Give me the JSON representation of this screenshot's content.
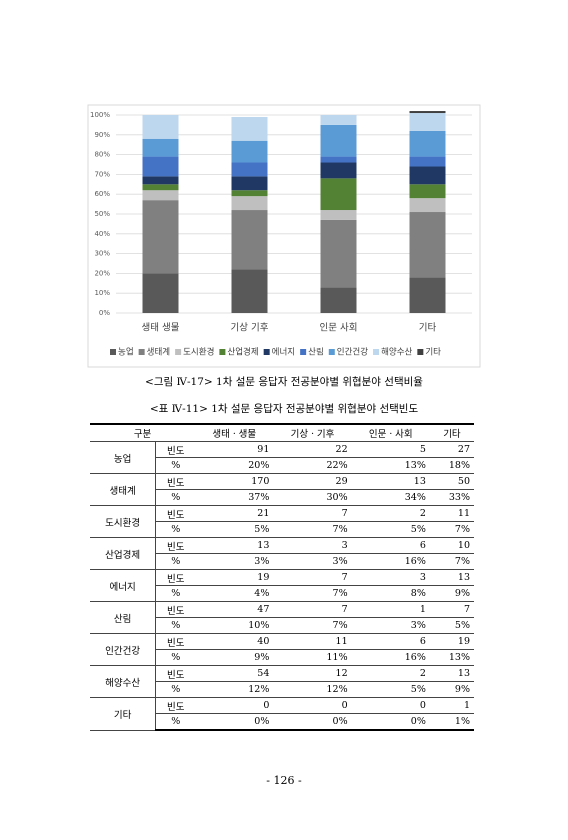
{
  "chart_data": {
    "type": "bar",
    "stacked": true,
    "categories": [
      "생태 생물",
      "기상 기후",
      "인문 사회",
      "기타"
    ],
    "series": [
      {
        "name": "농업",
        "color": "#595959",
        "values": [
          20,
          22,
          13,
          18
        ]
      },
      {
        "name": "생태계",
        "color": "#808080",
        "values": [
          37,
          30,
          34,
          33
        ]
      },
      {
        "name": "도시환경",
        "color": "#bfbfbf",
        "values": [
          5,
          7,
          5,
          7
        ]
      },
      {
        "name": "산업경제",
        "color": "#548235",
        "values": [
          3,
          3,
          16,
          7
        ]
      },
      {
        "name": "에너지",
        "color": "#1f3864",
        "values": [
          4,
          7,
          8,
          9
        ]
      },
      {
        "name": "산림",
        "color": "#4472c4",
        "values": [
          10,
          7,
          3,
          5
        ]
      },
      {
        "name": "인간건강",
        "color": "#5b9bd5",
        "values": [
          9,
          11,
          16,
          13
        ]
      },
      {
        "name": "해양수산",
        "color": "#bdd7ee",
        "values": [
          12,
          12,
          5,
          9
        ]
      },
      {
        "name": "기타",
        "color": "#404040",
        "values": [
          0,
          0,
          0,
          1
        ]
      }
    ],
    "ylim": [
      0,
      100
    ],
    "yticks": [
      {
        "value": 0,
        "label": "0%"
      },
      {
        "value": 10,
        "label": "10%"
      },
      {
        "value": 20,
        "label": "20%"
      },
      {
        "value": 30,
        "label": "30%"
      },
      {
        "value": 40,
        "label": "40%"
      },
      {
        "value": 50,
        "label": "50%"
      },
      {
        "value": 60,
        "label": "60%"
      },
      {
        "value": 70,
        "label": "70%"
      },
      {
        "value": 80,
        "label": "80%"
      },
      {
        "value": 90,
        "label": "90%"
      },
      {
        "value": 100,
        "label": "100%"
      }
    ],
    "grid": true,
    "legend": "bottom"
  },
  "figure_caption": "<그림 Ⅳ-17> 1차 설문 응답자 전공분야별 위협분야 선택비율",
  "table_caption": "<표 Ⅳ-11> 1차 설문 응답자 전공분야별 위협분야 선택빈도",
  "table": {
    "header": [
      "구분",
      "생태ㆍ생물",
      "기상ㆍ기후",
      "인문ㆍ사회",
      "기타"
    ],
    "groups": [
      {
        "label": "농업",
        "rows": [
          [
            "빈도",
            91,
            22,
            5,
            27
          ],
          [
            "%",
            "20%",
            "22%",
            "13%",
            "18%"
          ]
        ]
      },
      {
        "label": "생태계",
        "rows": [
          [
            "빈도",
            170,
            29,
            13,
            50
          ],
          [
            "%",
            "37%",
            "30%",
            "34%",
            "33%"
          ]
        ]
      },
      {
        "label": "도시환경",
        "rows": [
          [
            "빈도",
            21,
            7,
            2,
            11
          ],
          [
            "%",
            "5%",
            "7%",
            "5%",
            "7%"
          ]
        ]
      },
      {
        "label": "산업경제",
        "rows": [
          [
            "빈도",
            13,
            3,
            6,
            10
          ],
          [
            "%",
            "3%",
            "3%",
            "16%",
            "7%"
          ]
        ]
      },
      {
        "label": "에너지",
        "rows": [
          [
            "빈도",
            19,
            7,
            3,
            13
          ],
          [
            "%",
            "4%",
            "7%",
            "8%",
            "9%"
          ]
        ]
      },
      {
        "label": "산림",
        "rows": [
          [
            "빈도",
            47,
            7,
            1,
            7
          ],
          [
            "%",
            "10%",
            "7%",
            "3%",
            "5%"
          ]
        ]
      },
      {
        "label": "인간건강",
        "rows": [
          [
            "빈도",
            40,
            11,
            6,
            19
          ],
          [
            "%",
            "9%",
            "11%",
            "16%",
            "13%"
          ]
        ]
      },
      {
        "label": "해양수산",
        "rows": [
          [
            "빈도",
            54,
            12,
            2,
            13
          ],
          [
            "%",
            "12%",
            "12%",
            "5%",
            "9%"
          ]
        ]
      },
      {
        "label": "기타",
        "rows": [
          [
            "빈도",
            0,
            0,
            0,
            1
          ],
          [
            "%",
            "0%",
            "0%",
            "0%",
            "1%"
          ]
        ]
      }
    ]
  },
  "page_number": "- 126 -"
}
